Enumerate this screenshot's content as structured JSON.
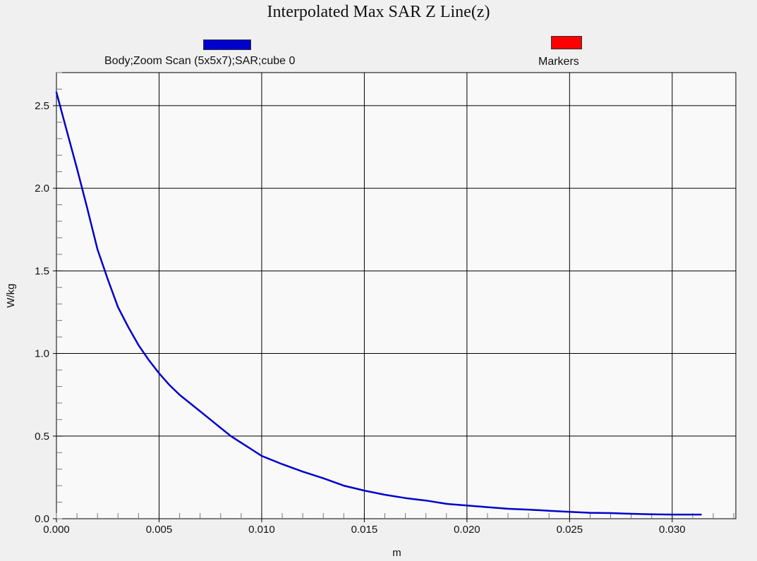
{
  "chart_data": {
    "type": "line",
    "title": "Interpolated Max SAR Z Line(z)",
    "xlabel": "m",
    "ylabel": "W/kg",
    "xlim": [
      0.0,
      0.0331
    ],
    "ylim": [
      0.0,
      2.7
    ],
    "grid": true,
    "legend_placement": "top",
    "x_ticks": [
      "0.000",
      "0.005",
      "0.010",
      "0.015",
      "0.020",
      "0.025",
      "0.030"
    ],
    "y_ticks": [
      "0.0",
      "0.5",
      "1.0",
      "1.5",
      "2.0",
      "2.5"
    ],
    "legend": [
      {
        "name": "Body;Zoom Scan (5x5x7);SAR;cube 0",
        "color": "#0000cc"
      },
      {
        "name": "Markers",
        "color": "#ff0000"
      }
    ],
    "series": [
      {
        "name": "Body;Zoom Scan (5x5x7);SAR;cube 0",
        "color": "#0000cc",
        "x": [
          0.0,
          0.0005,
          0.001,
          0.0015,
          0.002,
          0.0025,
          0.003,
          0.0035,
          0.004,
          0.0045,
          0.005,
          0.0055,
          0.006,
          0.0065,
          0.007,
          0.0075,
          0.008,
          0.0085,
          0.009,
          0.0095,
          0.01,
          0.011,
          0.012,
          0.013,
          0.014,
          0.015,
          0.016,
          0.017,
          0.018,
          0.019,
          0.02,
          0.021,
          0.022,
          0.023,
          0.024,
          0.025,
          0.026,
          0.027,
          0.028,
          0.029,
          0.03,
          0.0314
        ],
        "y": [
          2.58,
          2.35,
          2.12,
          1.88,
          1.63,
          1.45,
          1.28,
          1.16,
          1.05,
          0.96,
          0.88,
          0.81,
          0.75,
          0.7,
          0.65,
          0.6,
          0.55,
          0.5,
          0.46,
          0.42,
          0.38,
          0.33,
          0.285,
          0.245,
          0.2,
          0.17,
          0.145,
          0.125,
          0.11,
          0.09,
          0.08,
          0.07,
          0.06,
          0.055,
          0.048,
          0.042,
          0.036,
          0.034,
          0.03,
          0.027,
          0.025,
          0.025
        ]
      }
    ]
  }
}
